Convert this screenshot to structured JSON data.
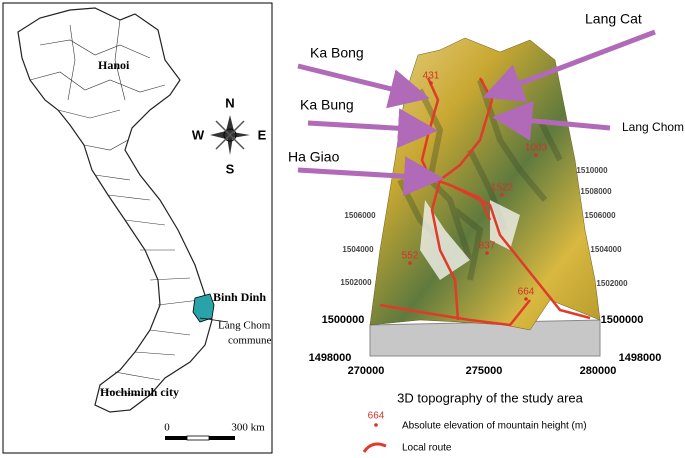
{
  "left_map": {
    "capital": "Hanoi",
    "compass": {
      "north": "N",
      "south": "S",
      "east": "E",
      "west": "W"
    },
    "province": "Binh Dinh",
    "commune": [
      "Lang Chom",
      "commune"
    ],
    "city": "Hochiminh city",
    "scale": {
      "start": "0",
      "end": "300 km"
    }
  },
  "right_map": {
    "places": {
      "lang_cat": "Lang Cat",
      "ka_bong": "Ka Bong",
      "ka_bung": "Ka Bung",
      "lang_chom": "Lang Chom",
      "ha_giao": "Ha Giao"
    },
    "peaks": [
      431,
      1003,
      1522,
      837,
      552,
      664
    ],
    "x_ticks": [
      270000,
      275000,
      280000
    ],
    "corner_ticks": [
      1498000,
      1498000
    ],
    "left_ticks": [
      1500000,
      1502000,
      1504000,
      1506000
    ],
    "right_ticks": [
      1500000,
      1502000,
      1504000,
      1506000,
      1508000,
      1510000
    ]
  },
  "legend": {
    "title": "3D topography of the study area",
    "sample_peak": 664,
    "peak_text": "Absolute elevation of mountain height (m)",
    "route_text": "Local route"
  }
}
